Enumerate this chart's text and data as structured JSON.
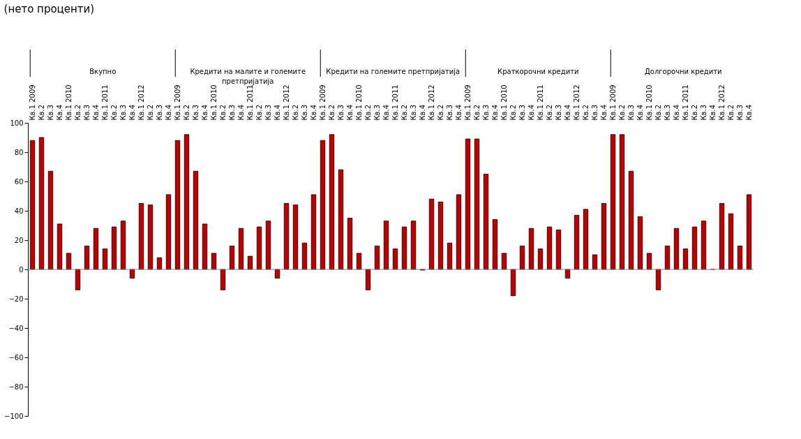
{
  "chart_data": {
    "type": "bar",
    "title": "(нето проценти)",
    "categories": [
      "Кв.1 2009",
      "Кв.2",
      "Кв.3",
      "Кв.4",
      "Кв.1 2010",
      "Кв.2",
      "Кв.3",
      "Кв.4",
      "Кв.1 2011",
      "Кв.2",
      "Кв.3",
      "Кв.4",
      "Кв.1 2012",
      "Кв.2",
      "Кв.3",
      "Кв.4",
      "Кв.1 2009",
      "Кв.2",
      "Кв.3",
      "Кв.4",
      "Кв.1 2010",
      "Кв.2",
      "Кв.3",
      "Кв.4",
      "Кв.1 2011",
      "Кв.2",
      "Кв.3",
      "Кв.4",
      "Кв.1 2012",
      "Кв.2",
      "Кв.3",
      "Кв.4",
      "Кв.1 2009",
      "Кв.2",
      "Кв.3",
      "Кв.4",
      "Кв.1 2010",
      "Кв.2",
      "Кв.3",
      "Кв.4",
      "Кв.1 2011",
      "Кв.2",
      "Кв.3",
      "Кв.4",
      "Кв.1 2012",
      "Кв.2",
      "Кв.3",
      "Кв.4",
      "Кв.1 2009",
      "Кв.2",
      "Кв.3",
      "Кв.4",
      "Кв.1 2010",
      "Кв.2",
      "Кв.3",
      "Кв.4",
      "Кв.1 2011",
      "Кв.2",
      "Кв.3",
      "Кв.4",
      "Кв.1 2012",
      "Кв.2",
      "Кв.3",
      "Кв.4",
      "Кв.1 2009",
      "Кв.2",
      "Кв.3",
      "Кв.4",
      "Кв.1 2010",
      "Кв.2",
      "Кв.3",
      "Кв.4",
      "Кв.1 2011",
      "Кв.2",
      "Кв.3",
      "Кв.4",
      "Кв.1 2012",
      "Кв.2",
      "Кв.3",
      "Кв.4"
    ],
    "series": [
      {
        "color": "#c00000",
        "values": [
          88,
          90,
          67,
          31,
          11,
          -14,
          16,
          28,
          14,
          29,
          33,
          -6,
          45,
          44,
          8,
          51,
          88,
          92,
          67,
          31,
          11,
          -14,
          16,
          28,
          9,
          29,
          33,
          -6,
          45,
          44,
          18,
          51,
          88,
          92,
          68,
          35,
          11,
          -14,
          16,
          33,
          14,
          29,
          33,
          -0.5,
          48,
          46,
          18,
          51,
          89,
          89,
          65,
          34,
          11,
          -18,
          16,
          28,
          14,
          29,
          27,
          -6,
          37,
          41,
          10,
          45,
          92,
          92,
          67,
          36,
          11,
          -14,
          16,
          28,
          14,
          29,
          33,
          0,
          45,
          38,
          16,
          51
        ]
      }
    ],
    "annotations": [
      "Вкупно",
      "Кредити на малите и големите претпријатија",
      "Кредити на големите претпријатија",
      "Краткорочни кредити",
      "Долгорочни кредити"
    ],
    "ylim": [
      -100,
      100
    ],
    "yticks": [
      -100,
      -80,
      -60,
      -40,
      -20,
      0,
      20,
      40,
      60,
      80,
      100
    ]
  }
}
